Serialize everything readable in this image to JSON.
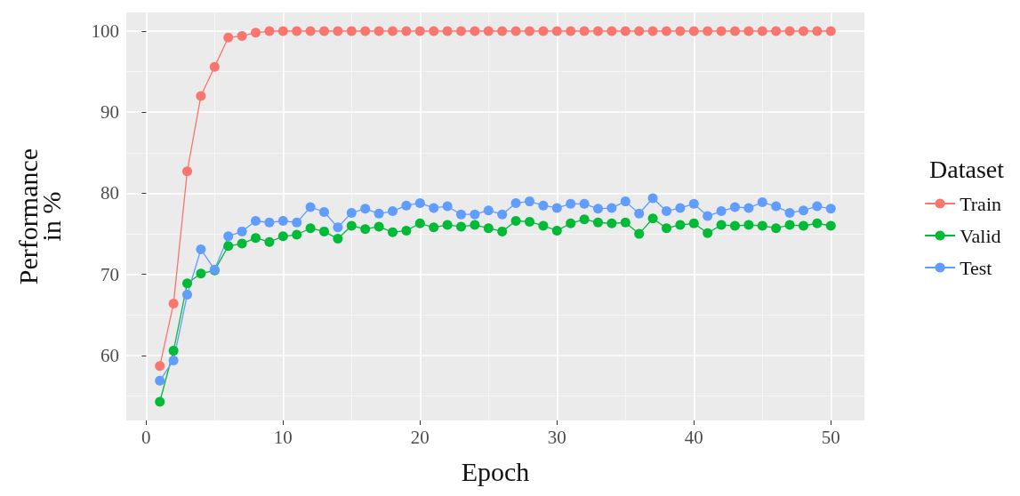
{
  "chart_data": {
    "type": "line",
    "xlabel": "Epoch",
    "ylabel": "Performance\nin %",
    "legend_title": "Dataset",
    "legend": "right",
    "grid": true,
    "marker": "circle",
    "line_style": "solid",
    "x": [
      1,
      2,
      3,
      4,
      5,
      6,
      7,
      8,
      9,
      10,
      11,
      12,
      13,
      14,
      15,
      16,
      17,
      18,
      19,
      20,
      21,
      22,
      23,
      24,
      25,
      26,
      27,
      28,
      29,
      30,
      31,
      32,
      33,
      34,
      35,
      36,
      37,
      38,
      39,
      40,
      41,
      42,
      43,
      44,
      45,
      46,
      47,
      48,
      49,
      50
    ],
    "xlim": [
      -1.45,
      52.45
    ],
    "xticks": [
      0,
      10,
      20,
      30,
      40,
      50
    ],
    "ylim": [
      52,
      102.3
    ],
    "yticks": [
      60,
      70,
      80,
      90,
      100
    ],
    "series": [
      {
        "name": "Train",
        "color": "#f8766d",
        "values": [
          58.7,
          66.4,
          82.7,
          92.0,
          95.6,
          99.2,
          99.4,
          99.8,
          100,
          100,
          100,
          100,
          100,
          100,
          100,
          100,
          100,
          100,
          100,
          100,
          100,
          100,
          100,
          100,
          100,
          100,
          100,
          100,
          100,
          100,
          100,
          100,
          100,
          100,
          100,
          100,
          100,
          100,
          100,
          100,
          100,
          100,
          100,
          100,
          100,
          100,
          100,
          100,
          100,
          100
        ]
      },
      {
        "name": "Valid",
        "color": "#00ba38",
        "values": [
          54.3,
          60.6,
          68.9,
          70.1,
          70.5,
          73.5,
          73.8,
          74.5,
          74.0,
          74.7,
          74.9,
          75.7,
          75.3,
          74.4,
          76.0,
          75.6,
          75.9,
          75.2,
          75.4,
          76.3,
          75.8,
          76.1,
          75.9,
          76.1,
          75.7,
          75.3,
          76.6,
          76.5,
          76.0,
          75.4,
          76.3,
          76.8,
          76.4,
          76.3,
          76.4,
          75.0,
          76.9,
          75.7,
          76.1,
          76.3,
          75.1,
          76.1,
          76.0,
          76.1,
          76.0,
          75.7,
          76.1,
          76.0,
          76.3,
          76.0
        ]
      },
      {
        "name": "Test",
        "color": "#619cff",
        "values": [
          56.9,
          59.4,
          67.5,
          73.1,
          70.6,
          74.7,
          75.3,
          76.6,
          76.4,
          76.6,
          76.4,
          78.3,
          77.7,
          75.8,
          77.6,
          78.1,
          77.5,
          77.8,
          78.5,
          78.8,
          78.2,
          78.4,
          77.4,
          77.4,
          77.9,
          77.4,
          78.8,
          79.0,
          78.5,
          78.2,
          78.7,
          78.7,
          78.1,
          78.2,
          79.0,
          77.5,
          79.4,
          77.8,
          78.2,
          78.7,
          77.2,
          77.8,
          78.3,
          78.2,
          78.9,
          78.4,
          77.6,
          77.9,
          78.4,
          78.1
        ]
      }
    ]
  }
}
